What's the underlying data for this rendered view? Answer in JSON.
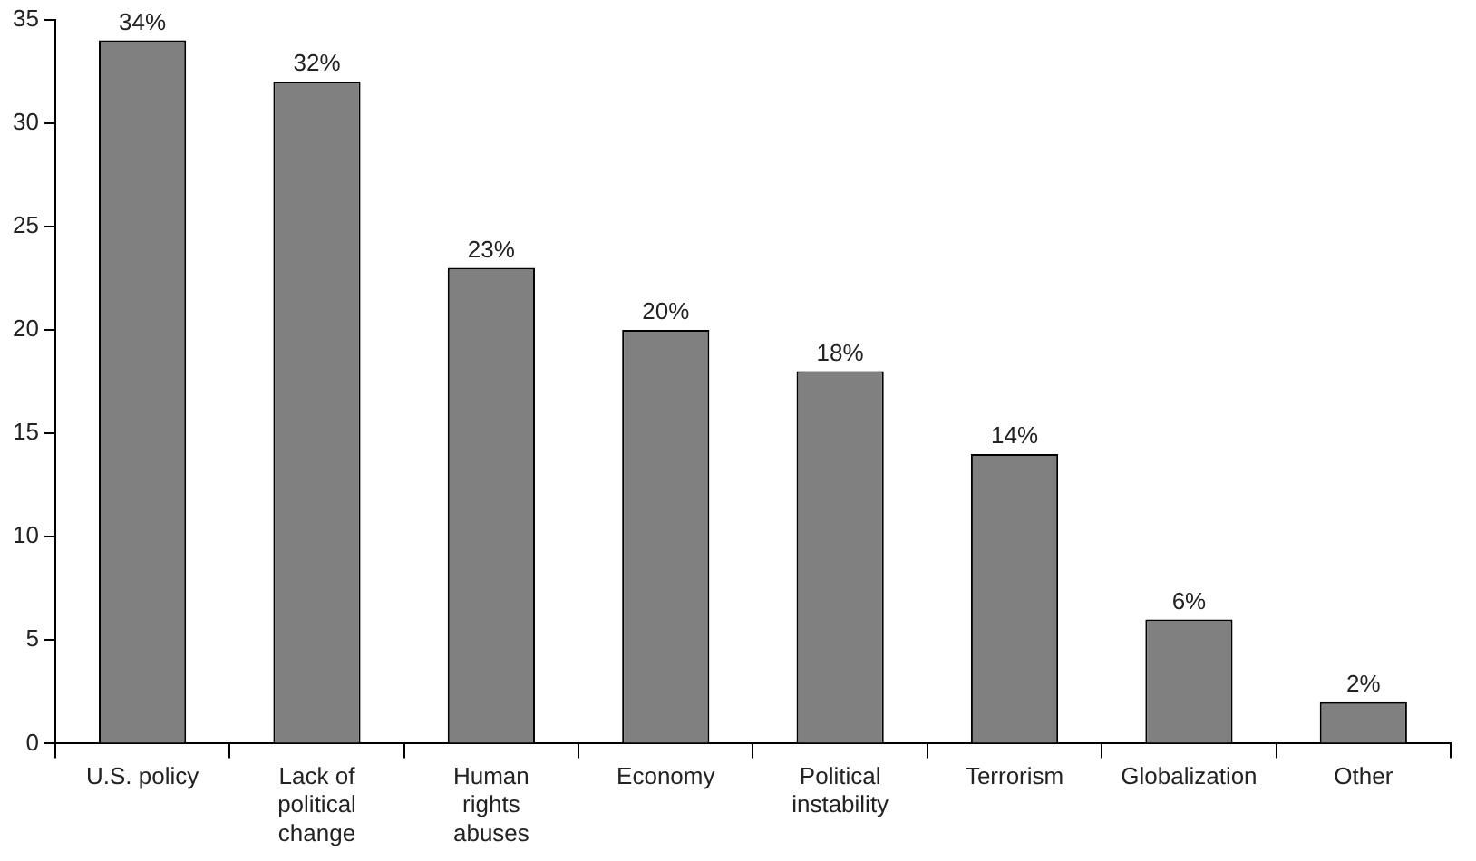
{
  "chart_data": {
    "type": "bar",
    "categories": [
      "U.S. policy",
      "Lack of political change",
      "Human rights abuses",
      "Economy",
      "Political instability",
      "Terrorism",
      "Globalization",
      "Other"
    ],
    "values": [
      34,
      32,
      23,
      20,
      18,
      14,
      6,
      2
    ],
    "value_labels": [
      "34%",
      "32%",
      "23%",
      "20%",
      "18%",
      "14%",
      "6%",
      "2%"
    ],
    "color": "#808080",
    "ylim": [
      0,
      35
    ],
    "yticks": [
      0,
      5,
      10,
      15,
      20,
      25,
      30,
      35
    ],
    "grid": false,
    "legend": false
  }
}
